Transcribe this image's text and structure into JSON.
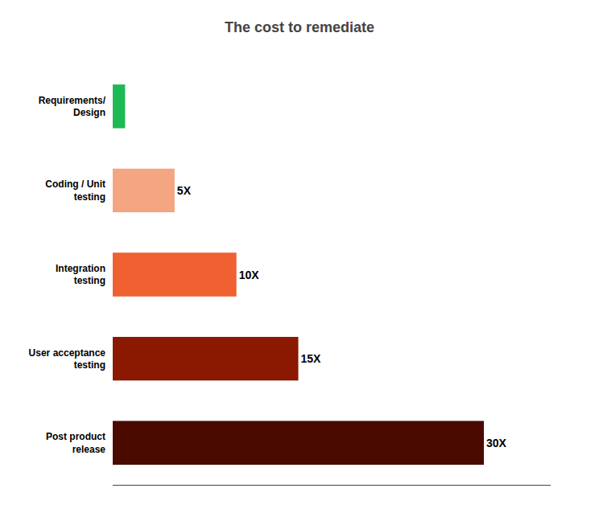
{
  "chart_data": {
    "type": "bar",
    "orientation": "horizontal",
    "title": "The cost to remediate",
    "categories": [
      "Requirements/\nDesign",
      "Coding / Unit\ntesting",
      "Integration\ntesting",
      "User acceptance\ntesting",
      "Post product\nrelease"
    ],
    "values": [
      1,
      5,
      10,
      15,
      30
    ],
    "value_labels": [
      null,
      "5X",
      "10X",
      "15X",
      "30X"
    ],
    "colors": [
      "#1db954",
      "#f4a582",
      "#f06030",
      "#8b1800",
      "#4a0a00"
    ],
    "xlim": [
      0,
      35.4
    ],
    "data_labels": true,
    "tick_labels": "y",
    "grid": false
  }
}
